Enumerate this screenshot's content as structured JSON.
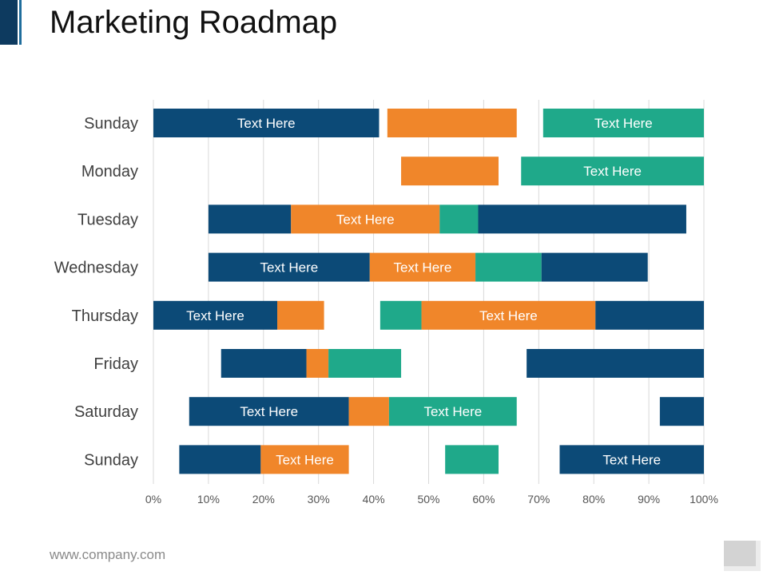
{
  "title": "Marketing Roadmap",
  "footer": {
    "url": "www.company.com"
  },
  "colors": {
    "navy": "#0c4a77",
    "orange": "#f0862a",
    "teal": "#1fa98a"
  },
  "chart_data": {
    "type": "bar",
    "orientation": "horizontal",
    "grid": true,
    "xlim": [
      0,
      100
    ],
    "x_ticks": [
      "0%",
      "10%",
      "20%",
      "30%",
      "40%",
      "50%",
      "60%",
      "70%",
      "80%",
      "90%",
      "100%"
    ],
    "categories": [
      "Sunday",
      "Monday",
      "Tuesday",
      "Wednesday",
      "Thursday",
      "Friday",
      "Saturday",
      "Sunday"
    ],
    "rows": [
      {
        "segments": [
          {
            "start": 0,
            "end": 41,
            "color": "navy",
            "label": "Text Here"
          },
          {
            "start": 42.5,
            "end": 66,
            "color": "orange",
            "label": ""
          },
          {
            "start": 70.8,
            "end": 100,
            "color": "teal",
            "label": "Text Here"
          }
        ]
      },
      {
        "segments": [
          {
            "start": 45,
            "end": 62.7,
            "color": "orange",
            "label": ""
          },
          {
            "start": 66.8,
            "end": 100,
            "color": "teal",
            "label": "Text Here"
          }
        ]
      },
      {
        "segments": [
          {
            "start": 10,
            "end": 25,
            "color": "navy",
            "label": ""
          },
          {
            "start": 25,
            "end": 52,
            "color": "orange",
            "label": "Text Here"
          },
          {
            "start": 52,
            "end": 59,
            "color": "teal",
            "label": ""
          },
          {
            "start": 59,
            "end": 96.8,
            "color": "navy",
            "label": ""
          }
        ]
      },
      {
        "segments": [
          {
            "start": 10,
            "end": 39.3,
            "color": "navy",
            "label": "Text Here"
          },
          {
            "start": 39.3,
            "end": 58.5,
            "color": "orange",
            "label": "Text Here"
          },
          {
            "start": 58.5,
            "end": 70.5,
            "color": "teal",
            "label": ""
          },
          {
            "start": 70.5,
            "end": 89.8,
            "color": "navy",
            "label": ""
          }
        ]
      },
      {
        "segments": [
          {
            "start": 0,
            "end": 22.5,
            "color": "navy",
            "label": "Text Here"
          },
          {
            "start": 22.5,
            "end": 31,
            "color": "orange",
            "label": ""
          },
          {
            "start": 41.2,
            "end": 48.7,
            "color": "teal",
            "label": ""
          },
          {
            "start": 48.7,
            "end": 80.3,
            "color": "orange",
            "label": "Text Here"
          },
          {
            "start": 80.3,
            "end": 100,
            "color": "navy",
            "label": ""
          }
        ]
      },
      {
        "segments": [
          {
            "start": 12.3,
            "end": 27.8,
            "color": "navy",
            "label": ""
          },
          {
            "start": 27.8,
            "end": 31.8,
            "color": "orange",
            "label": ""
          },
          {
            "start": 31.8,
            "end": 45,
            "color": "teal",
            "label": ""
          },
          {
            "start": 67.8,
            "end": 100,
            "color": "navy",
            "label": ""
          }
        ]
      },
      {
        "segments": [
          {
            "start": 6.5,
            "end": 35.5,
            "color": "navy",
            "label": "Text Here"
          },
          {
            "start": 35.5,
            "end": 42.8,
            "color": "orange",
            "label": ""
          },
          {
            "start": 42.8,
            "end": 66,
            "color": "teal",
            "label": "Text Here"
          },
          {
            "start": 92,
            "end": 100,
            "color": "navy",
            "label": ""
          }
        ]
      },
      {
        "segments": [
          {
            "start": 4.7,
            "end": 19.5,
            "color": "navy",
            "label": ""
          },
          {
            "start": 19.5,
            "end": 35.5,
            "color": "orange",
            "label": "Text Here"
          },
          {
            "start": 53,
            "end": 62.7,
            "color": "teal",
            "label": ""
          },
          {
            "start": 73.8,
            "end": 100,
            "color": "navy",
            "label": "Text Here"
          }
        ]
      }
    ]
  }
}
